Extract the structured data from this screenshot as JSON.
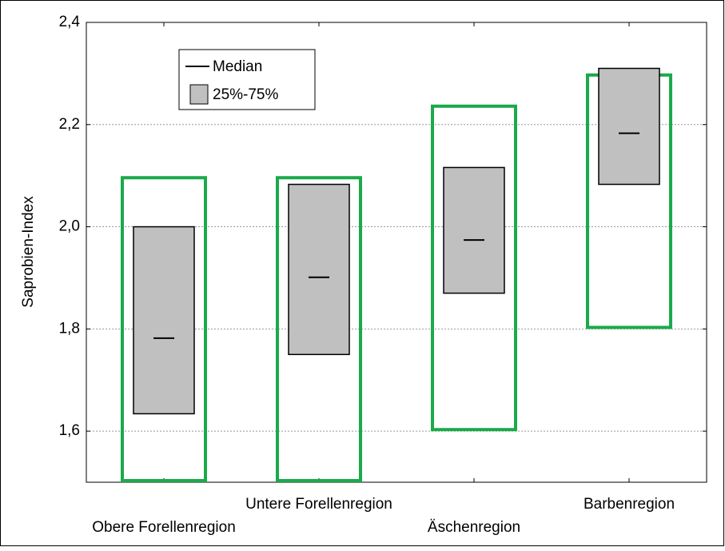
{
  "chart_data": {
    "type": "box",
    "y_label": "Saprobien-Index",
    "categories": [
      "Obere Forellenregion",
      "Untere Forellenregion",
      "Äschenregion",
      "Barbenregion"
    ],
    "median": [
      1.782,
      1.901,
      1.974,
      2.183
    ],
    "q1": [
      1.634,
      1.75,
      1.87,
      2.083
    ],
    "q3": [
      2.0,
      2.083,
      2.116,
      2.31
    ],
    "box_color": "#c0c0c0",
    "median_label": "Median",
    "box_label": "25%-75%",
    "ranges": {
      "color": "#1aaa4a",
      "low": [
        1.5,
        1.5,
        1.603,
        1.803
      ],
      "high": [
        2.096,
        2.096,
        2.236,
        2.297
      ]
    },
    "ylim": [
      1.5,
      2.4
    ],
    "yticks": [
      {
        "value": 1.6,
        "label": "1,6"
      },
      {
        "value": 1.8,
        "label": "1,8"
      },
      {
        "value": 2.0,
        "label": "2,0"
      },
      {
        "value": 2.2,
        "label": "2,2"
      },
      {
        "value": 2.4,
        "label": "2,4"
      }
    ],
    "grid": true
  }
}
